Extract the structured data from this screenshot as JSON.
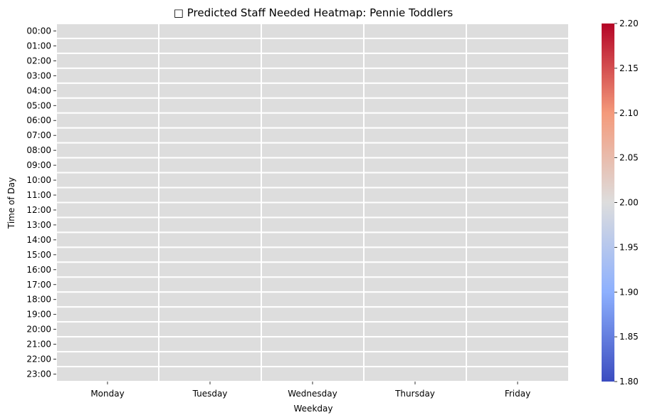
{
  "chart_data": {
    "type": "heatmap",
    "title": "□ Predicted Staff Needed Heatmap: Pennie Toddlers",
    "xlabel": "Weekday",
    "ylabel": "Time of Day",
    "x_categories": [
      "Monday",
      "Tuesday",
      "Wednesday",
      "Thursday",
      "Friday"
    ],
    "y_categories": [
      "00:00",
      "01:00",
      "02:00",
      "03:00",
      "04:00",
      "05:00",
      "06:00",
      "07:00",
      "08:00",
      "09:00",
      "10:00",
      "11:00",
      "12:00",
      "13:00",
      "14:00",
      "15:00",
      "16:00",
      "17:00",
      "18:00",
      "19:00",
      "20:00",
      "21:00",
      "22:00",
      "23:00"
    ],
    "values": [
      [
        2,
        2,
        2,
        2,
        2
      ],
      [
        2,
        2,
        2,
        2,
        2
      ],
      [
        2,
        2,
        2,
        2,
        2
      ],
      [
        2,
        2,
        2,
        2,
        2
      ],
      [
        2,
        2,
        2,
        2,
        2
      ],
      [
        2,
        2,
        2,
        2,
        2
      ],
      [
        2,
        2,
        2,
        2,
        2
      ],
      [
        2,
        2,
        2,
        2,
        2
      ],
      [
        2,
        2,
        2,
        2,
        2
      ],
      [
        2,
        2,
        2,
        2,
        2
      ],
      [
        2,
        2,
        2,
        2,
        2
      ],
      [
        2,
        2,
        2,
        2,
        2
      ],
      [
        2,
        2,
        2,
        2,
        2
      ],
      [
        2,
        2,
        2,
        2,
        2
      ],
      [
        2,
        2,
        2,
        2,
        2
      ],
      [
        2,
        2,
        2,
        2,
        2
      ],
      [
        2,
        2,
        2,
        2,
        2
      ],
      [
        2,
        2,
        2,
        2,
        2
      ],
      [
        2,
        2,
        2,
        2,
        2
      ],
      [
        2,
        2,
        2,
        2,
        2
      ],
      [
        2,
        2,
        2,
        2,
        2
      ],
      [
        2,
        2,
        2,
        2,
        2
      ],
      [
        2,
        2,
        2,
        2,
        2
      ],
      [
        2,
        2,
        2,
        2,
        2
      ]
    ],
    "colormap": "coolwarm",
    "colorbar": {
      "range": [
        1.8,
        2.2
      ],
      "ticks": [
        "1.80",
        "1.85",
        "1.90",
        "1.95",
        "2.00",
        "2.05",
        "2.10",
        "2.15",
        "2.20"
      ]
    },
    "colors": {
      "low": "#3b4cc0",
      "mid": "#dddddd",
      "high": "#b40426"
    }
  }
}
